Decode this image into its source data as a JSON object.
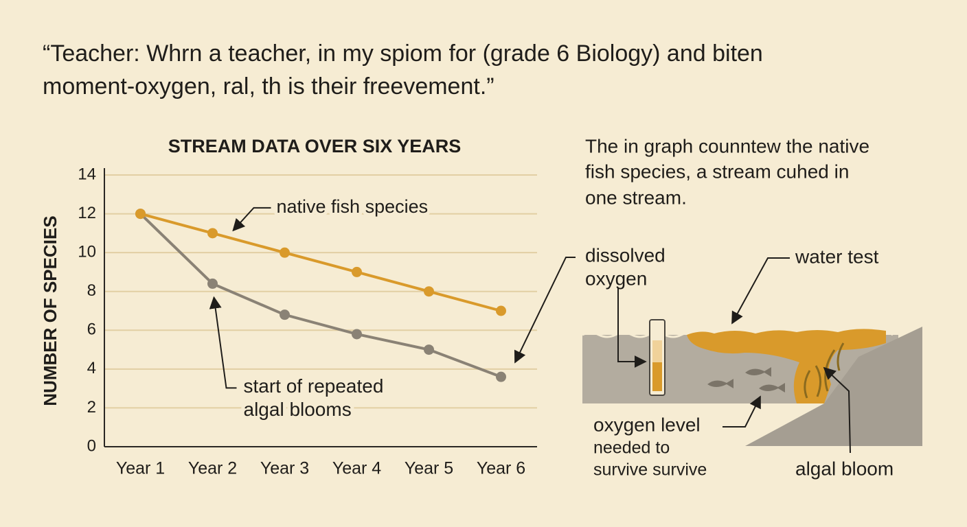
{
  "quote": [
    "“Teacher: Whrn a teacher, in my spiom for (grade 6 Biology) and biten",
    "moment-oxygen, ral, th is their freevement.”"
  ],
  "chart_data": {
    "type": "line",
    "title": "STREAM DATA OVER SIX YEARS",
    "y_label": "NUMBER OF SPECIES",
    "categories": [
      "Year 1",
      "Year 2",
      "Year 3",
      "Year 4",
      "Year 5",
      "Year 6"
    ],
    "series": [
      {
        "name": "native fish species",
        "color": "#d99a2b",
        "values": [
          12,
          11,
          10,
          9,
          8,
          7
        ]
      },
      {
        "color": "#8a8275",
        "values": [
          12,
          8.4,
          6.8,
          5.8,
          5.0,
          3.6
        ]
      }
    ],
    "annotation": [
      "start of repeated",
      "algal blooms"
    ],
    "ylim": [
      0,
      14
    ],
    "yticks": [
      0,
      2,
      4,
      6,
      8,
      10,
      12,
      14
    ],
    "grid": true
  },
  "description": [
    "The in graph counntew the native",
    "fish species, a stream cuhed in",
    "one stream."
  ],
  "diagram": {
    "dissolved_oxygen": [
      "dissolved",
      "oxygen"
    ],
    "water_test": "water test",
    "oxygen_level": [
      "oxygen level",
      "needed to",
      "survive survive"
    ],
    "algal_bloom": "algal bloom"
  }
}
